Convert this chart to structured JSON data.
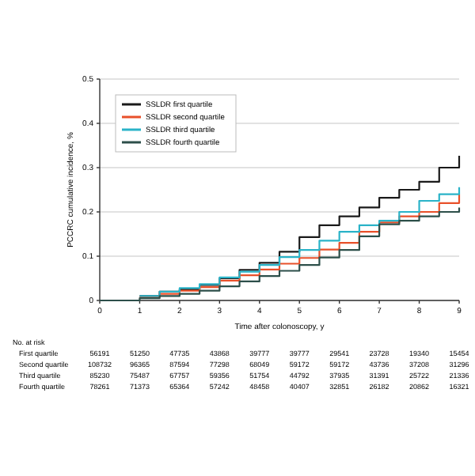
{
  "chart_data": {
    "type": "step",
    "xlabel": "Time after colonoscopy, y",
    "ylabel": "PCCRC cumulative incidence, %",
    "x": [
      0,
      0.5,
      1,
      1.5,
      2,
      2.5,
      3,
      3.5,
      4,
      4.5,
      5,
      5.5,
      6,
      6.5,
      7,
      7.5,
      8,
      8.5,
      9
    ],
    "series": [
      {
        "name": "SSLDR first quartile",
        "color": "#1a1a1a",
        "values": [
          null,
          null,
          0.01,
          0.02,
          0.025,
          0.035,
          0.05,
          0.069,
          0.085,
          0.11,
          0.143,
          0.17,
          0.19,
          0.21,
          0.232,
          0.25,
          0.268,
          0.3,
          0.327
        ]
      },
      {
        "name": "SSLDR second quartile",
        "color": "#e8502a",
        "values": [
          null,
          null,
          0.008,
          0.015,
          0.022,
          0.03,
          0.045,
          0.057,
          0.07,
          0.083,
          0.096,
          0.115,
          0.13,
          0.155,
          0.176,
          0.19,
          0.2,
          0.22,
          0.24
        ]
      },
      {
        "name": "SSLDR third quartile",
        "color": "#2ab3c8",
        "values": [
          null,
          null,
          0.01,
          0.02,
          0.028,
          0.037,
          0.052,
          0.065,
          0.08,
          0.098,
          0.114,
          0.135,
          0.155,
          0.17,
          0.18,
          0.2,
          0.225,
          0.24,
          0.256
        ]
      },
      {
        "name": "SSLDR fourth quartile",
        "color": "#2d4f4a",
        "values": [
          0,
          0,
          0.005,
          0.01,
          0.015,
          0.022,
          0.032,
          0.043,
          0.055,
          0.067,
          0.08,
          0.097,
          0.114,
          0.145,
          0.172,
          0.18,
          0.19,
          0.2,
          0.21
        ]
      }
    ],
    "xlim": [
      0,
      9
    ],
    "xticks": [
      0,
      1,
      2,
      3,
      4,
      5,
      6,
      7,
      8,
      9
    ],
    "ylim": [
      0,
      0.5
    ],
    "yticks": [
      0,
      0.1,
      0.2,
      0.3,
      0.4,
      0.5
    ],
    "grid": "y",
    "legend": "top left",
    "line_style": "solid",
    "marker": "none",
    "annotations": [
      "No. at risk",
      "First quartile",
      "56191",
      "51250",
      "47735",
      "43868",
      "39777",
      "39777",
      "29541",
      "23728",
      "19340",
      "15454",
      "Second quartile",
      "108732",
      "96365",
      "87594",
      "77298",
      "68049",
      "59172",
      "59172",
      "43736",
      "37208",
      "31296",
      "Third quartile",
      "85230",
      "75487",
      "67757",
      "59356",
      "51754",
      "44792",
      "37935",
      "31391",
      "25722",
      "21336",
      "Fourth quartile",
      "78261",
      "71373",
      "65364",
      "57242",
      "48458",
      "40407",
      "32851",
      "26182",
      "20862",
      "16321"
    ]
  }
}
